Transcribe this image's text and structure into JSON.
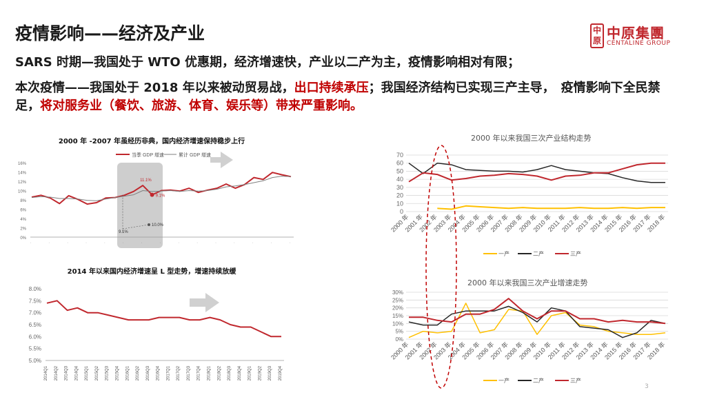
{
  "title": "疫情影响——经济及产业",
  "logo": {
    "mark": "中原",
    "cn": "中原集團",
    "en": "CENTALINE GROUP"
  },
  "bullets": {
    "b1": "SARS 时期—我国处于 WTO 优惠期，经济增速快，产业以二产为主，疫情影响相对有限；",
    "b2_part1": "本次疫情——我国处于 2018 年以来被动贸易战，",
    "b2_red1": "出口持续承压",
    "b2_part2": "；我国经济结构已实现三产主导，　疫情影响下全民禁足，",
    "b2_red2": "将对服务业（餐饮、旅游、体育、娱乐等）带来严重影响。"
  },
  "colors": {
    "red": "#c00000",
    "darkred": "#c0272d",
    "yellow": "#ffc000",
    "black": "#262626",
    "grid": "#d9d9d9",
    "gray_box": "#a6a6a6"
  },
  "chart_data": [
    {
      "type": "line",
      "title": "2000 年 -2007 年虽经历非典，国内经济增速保持稳步上行",
      "legend": [
        "当季 GDP 增速",
        "累计 GDP 增速"
      ],
      "ylim": [
        0,
        16
      ],
      "y_ticks": [
        "0%",
        "2%",
        "4%",
        "6%",
        "8%",
        "10%",
        "12%",
        "14%",
        "16%"
      ],
      "annotations": [
        "11.1%",
        "9.1%",
        "9.1%",
        "10.0%"
      ],
      "series": [
        {
          "name": "当季 GDP 增速",
          "values": [
            8.6,
            9.0,
            8.4,
            7.2,
            8.9,
            8.1,
            7.1,
            7.4,
            8.4,
            8.5,
            9.0,
            9.8,
            11.1,
            9.1,
            10.0,
            10.1,
            9.9,
            10.5,
            9.6,
            10.1,
            10.5,
            11.4,
            10.5,
            11.3,
            12.8,
            12.4,
            13.9,
            13.4,
            13.0
          ]
        },
        {
          "name": "累计 GDP 增速",
          "values": [
            8.5,
            8.7,
            8.6,
            8.3,
            8.3,
            8.2,
            7.9,
            7.8,
            8.2,
            8.5,
            8.8,
            9.1,
            10.0,
            9.8,
            9.9,
            10.0,
            9.8,
            10.0,
            9.9,
            10.0,
            10.3,
            10.8,
            11.0,
            11.3,
            11.7,
            12.1,
            12.8,
            13.1,
            13.0
          ]
        }
      ]
    },
    {
      "type": "line",
      "title": "2014 年以来国内经济增速呈 L 型走势，增速持续放缓",
      "ylim": [
        5.0,
        8.0
      ],
      "y_ticks": [
        "5.0%",
        "5.5%",
        "6.0%",
        "6.5%",
        "7.0%",
        "7.5%",
        "8.0%"
      ],
      "x_labels": [
        "2014Q1",
        "2014Q2",
        "2014Q3",
        "2014Q4",
        "2015Q1",
        "2015Q2",
        "2015Q3",
        "2015Q4",
        "2016Q1",
        "2016Q2",
        "2016Q3",
        "2016Q4",
        "2017Q1",
        "2017Q2",
        "2017Q3",
        "2017Q4",
        "2018Q1",
        "2018Q2",
        "2018Q3",
        "2018Q4",
        "2019Q1",
        "2019Q2",
        "2019Q3",
        "2019Q4"
      ],
      "series": [
        {
          "name": "GDP 增速",
          "values": [
            7.4,
            7.5,
            7.1,
            7.2,
            7.0,
            7.0,
            6.9,
            6.8,
            6.7,
            6.7,
            6.7,
            6.8,
            6.8,
            6.8,
            6.7,
            6.7,
            6.8,
            6.7,
            6.5,
            6.4,
            6.4,
            6.2,
            6.0,
            6.0
          ]
        }
      ]
    },
    {
      "type": "line",
      "title": "2000 年以来我国三次产业结构走势",
      "x_labels": [
        "2000 年",
        "2001 年",
        "2002 年",
        "2003 年",
        "2004 年",
        "2005 年",
        "2006 年",
        "2007 年",
        "2008 年",
        "2009 年",
        "2010 年",
        "2011 年",
        "2012 年",
        "2013 年",
        "2014 年",
        "2015 年",
        "2016 年",
        "2017 年",
        "2018 年"
      ],
      "ylim": [
        0,
        70
      ],
      "y_ticks": [
        "0",
        "10",
        "20",
        "30",
        "40",
        "50",
        "60",
        "70"
      ],
      "legend": [
        "一产",
        "二产",
        "三产"
      ],
      "series": [
        {
          "name": "一产",
          "values": [
            null,
            null,
            4,
            3,
            7,
            6,
            5,
            4,
            5,
            4,
            4,
            4,
            5,
            4,
            4,
            5,
            4,
            5,
            5
          ]
        },
        {
          "name": "二产",
          "values": [
            60,
            47,
            60,
            58,
            52,
            51,
            50,
            50,
            49,
            52,
            57,
            52,
            50,
            48,
            47,
            42,
            38,
            36,
            36
          ]
        },
        {
          "name": "三产",
          "values": [
            37,
            48,
            46,
            39,
            41,
            44,
            45,
            47,
            46,
            44,
            39,
            44,
            45,
            48,
            48,
            53,
            58,
            60,
            60
          ]
        }
      ]
    },
    {
      "type": "line",
      "title": "2000 年以来我国三次产业增速走势",
      "x_labels": [
        "2000 年",
        "2001 年",
        "2002 年",
        "2003 年",
        "2004 年",
        "2005 年",
        "2006 年",
        "2007 年",
        "2008 年",
        "2009 年",
        "2010 年",
        "2011 年",
        "2012 年",
        "2013 年",
        "2014 年",
        "2015 年",
        "2016 年",
        "2017 年",
        "2018 年"
      ],
      "ylim": [
        0,
        30
      ],
      "y_ticks": [
        "0%",
        "5%",
        "10%",
        "15%",
        "20%",
        "25%",
        "30%"
      ],
      "legend": [
        "一产",
        "二产",
        "三产"
      ],
      "series": [
        {
          "name": "一产",
          "values": [
            1,
            5,
            4,
            5,
            23,
            4,
            6,
            19,
            18,
            3,
            15,
            17,
            9,
            8,
            5,
            4,
            3,
            3,
            4
          ]
        },
        {
          "name": "二产",
          "values": [
            11,
            9,
            9,
            16,
            18,
            18,
            18,
            21,
            17,
            11,
            20,
            18,
            8,
            7,
            6,
            1,
            4,
            12,
            10
          ]
        },
        {
          "name": "三产",
          "values": [
            14,
            14,
            12,
            11,
            16,
            16,
            19,
            26,
            18,
            13,
            18,
            18,
            13,
            13,
            11,
            12,
            11,
            11,
            10
          ]
        }
      ]
    }
  ],
  "page_number": "3"
}
